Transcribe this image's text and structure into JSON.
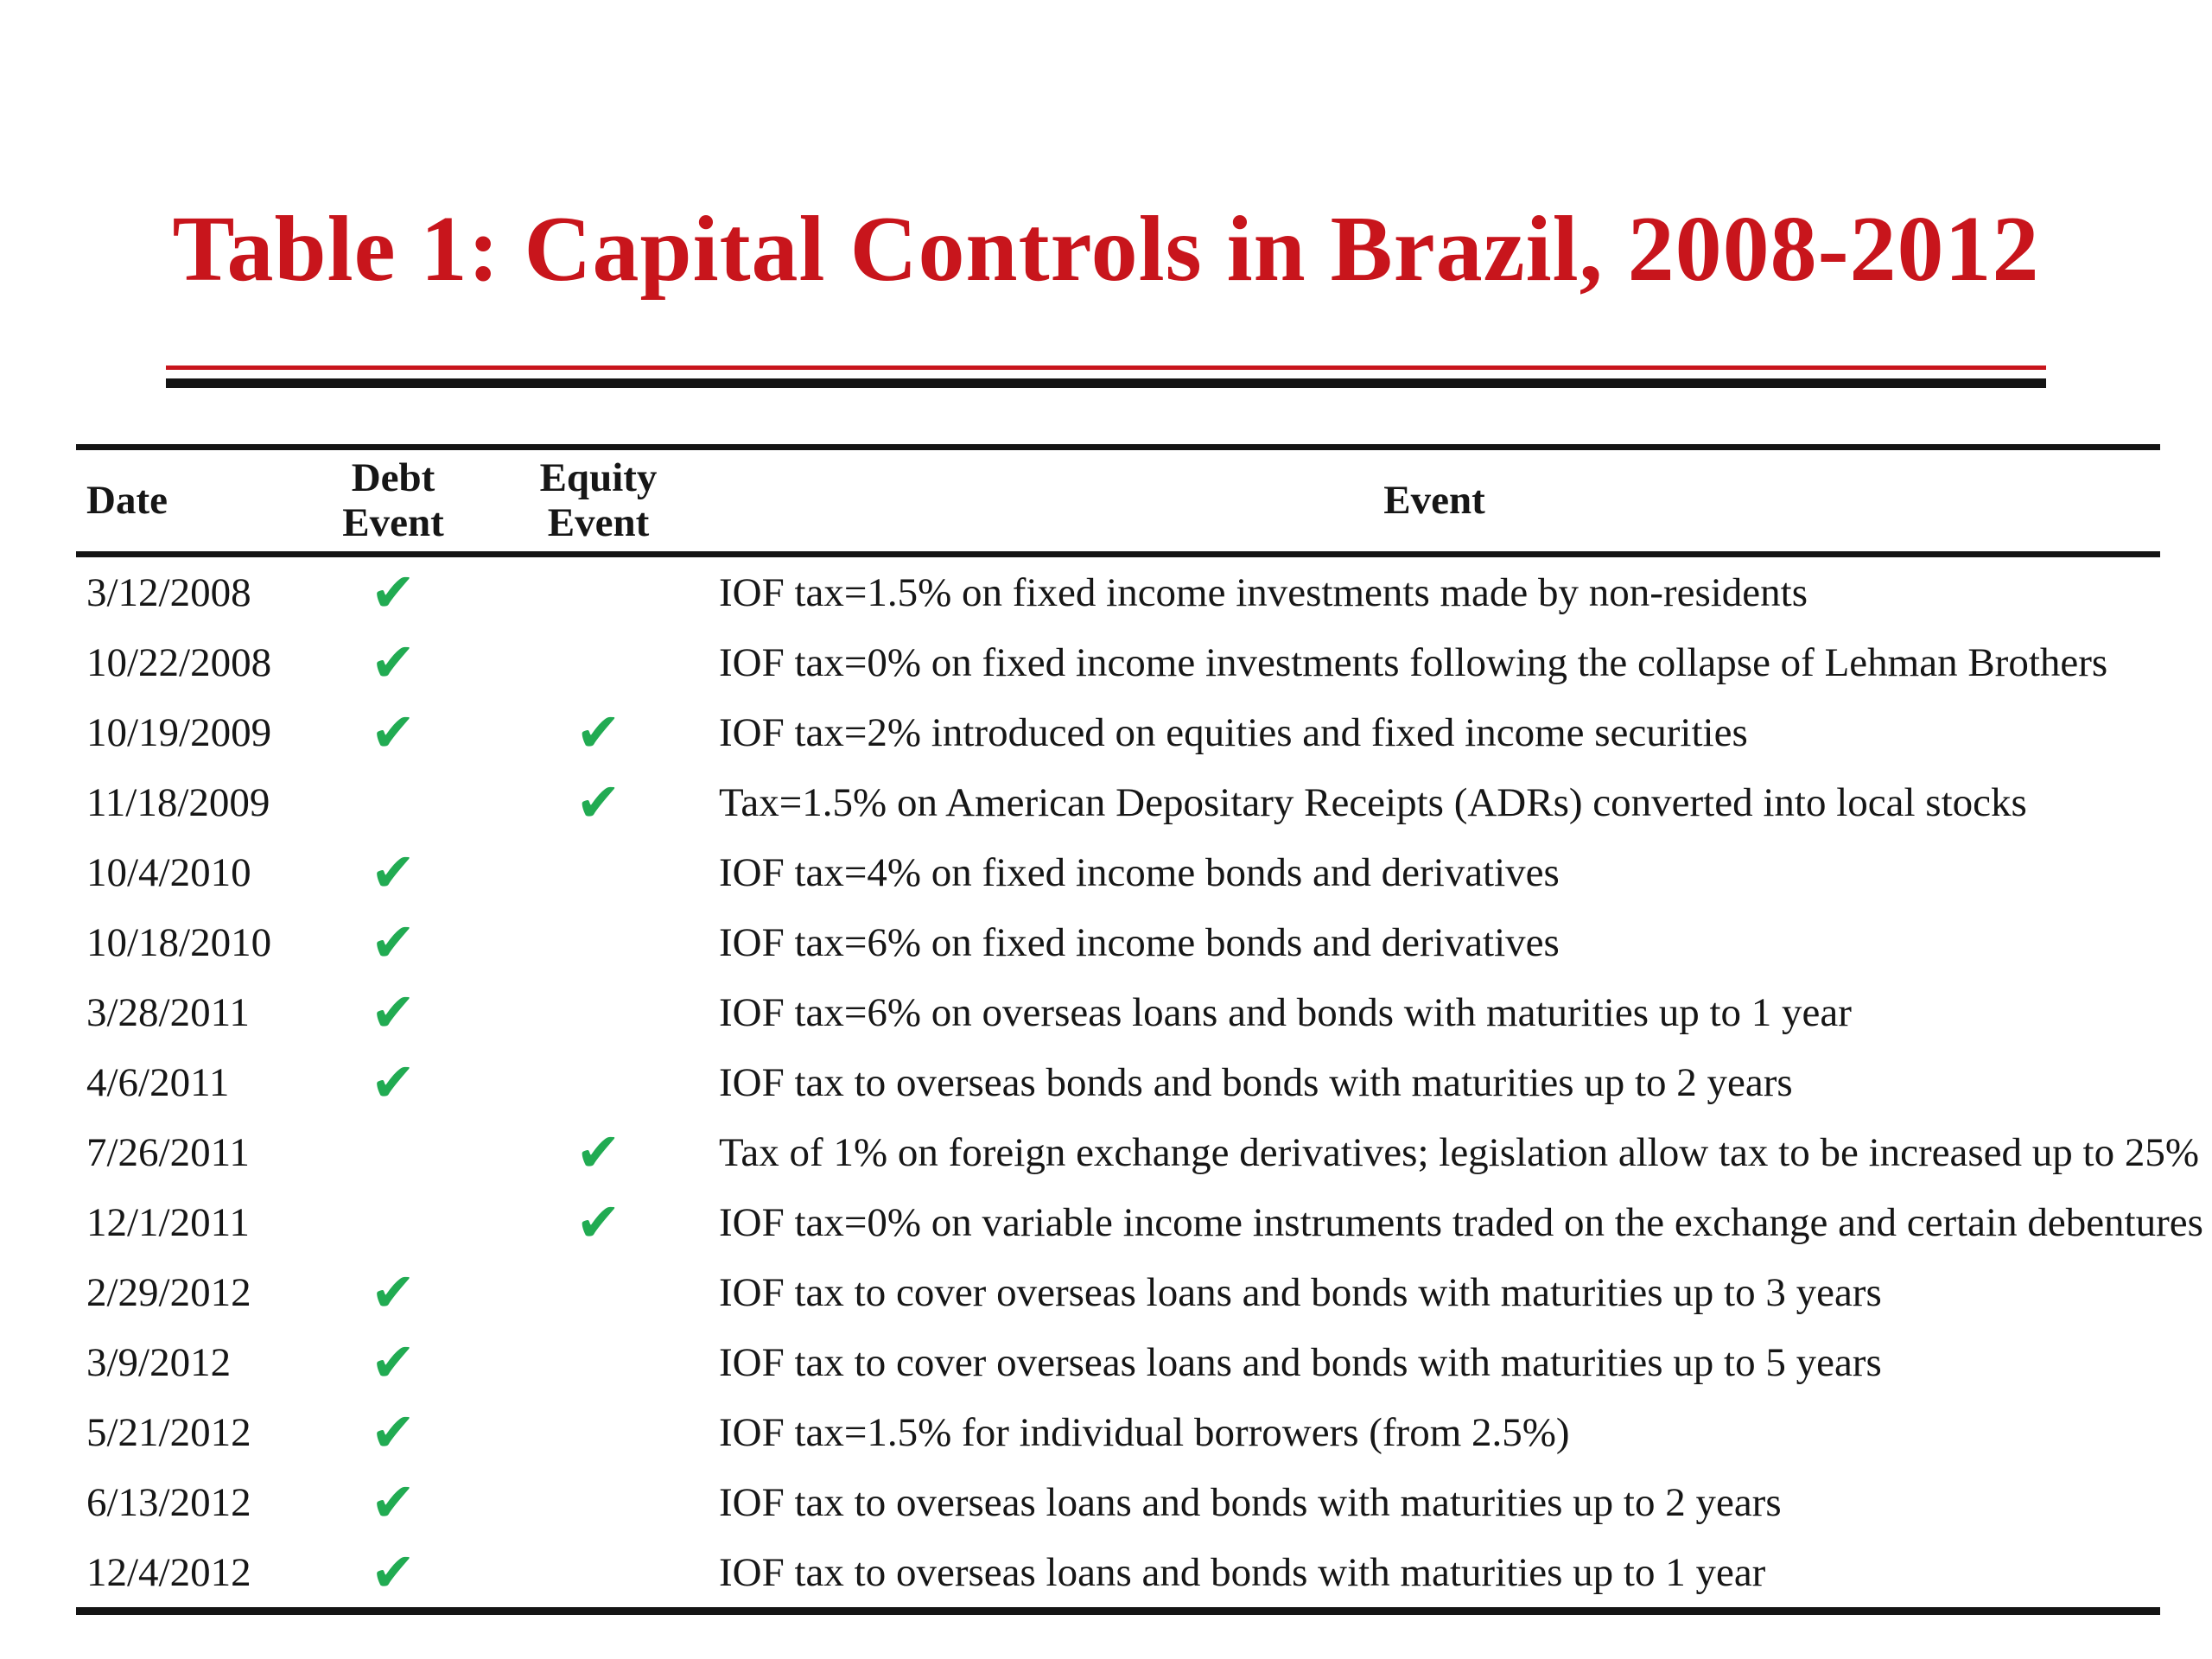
{
  "colors": {
    "background": "#ffffff",
    "text": "#161616",
    "title_red": "#c8151c",
    "rule_black": "#141414",
    "check_green": "#21ab52"
  },
  "title": {
    "text": "Table 1: Capital Controls in Brazil, 2008-2012"
  },
  "table": {
    "headers": {
      "date": "Date",
      "debt": "Debt Event",
      "equity": "Equity Event",
      "event": "Event"
    },
    "check_icon": {
      "name": "check-icon",
      "glyph": "✔"
    },
    "rows": [
      {
        "date": "3/12/2008",
        "debt_event": true,
        "equity_event": false,
        "event": "IOF tax=1.5% on fixed income investments made by non-residents"
      },
      {
        "date": "10/22/2008",
        "debt_event": true,
        "equity_event": false,
        "event": "IOF tax=0% on fixed income investments following the collapse of Lehman Brothers"
      },
      {
        "date": "10/19/2009",
        "debt_event": true,
        "equity_event": true,
        "event": "IOF tax=2% introduced on equities and fixed income securities"
      },
      {
        "date": "11/18/2009",
        "debt_event": false,
        "equity_event": true,
        "event": "Tax=1.5% on American Depositary Receipts (ADRs) converted into local stocks"
      },
      {
        "date": "10/4/2010",
        "debt_event": true,
        "equity_event": false,
        "event": "IOF tax=4% on fixed income bonds and derivatives"
      },
      {
        "date": "10/18/2010",
        "debt_event": true,
        "equity_event": false,
        "event": "IOF tax=6% on fixed income bonds and derivatives"
      },
      {
        "date": "3/28/2011",
        "debt_event": true,
        "equity_event": false,
        "event": "IOF tax=6% on overseas loans and bonds with maturities up to 1 year"
      },
      {
        "date": "4/6/2011",
        "debt_event": true,
        "equity_event": false,
        "event": "IOF tax to overseas bonds and bonds with maturities up to 2 years"
      },
      {
        "date": "7/26/2011",
        "debt_event": false,
        "equity_event": true,
        "event": "Tax of 1% on foreign exchange derivatives; legislation allow tax to be increased up to 25%"
      },
      {
        "date": "12/1/2011",
        "debt_event": false,
        "equity_event": true,
        "event": "IOF tax=0% on variable income instruments traded on the exchange and certain debentures"
      },
      {
        "date": "2/29/2012",
        "debt_event": true,
        "equity_event": false,
        "event": "IOF tax to cover overseas loans and bonds with maturities up to 3 years"
      },
      {
        "date": "3/9/2012",
        "debt_event": true,
        "equity_event": false,
        "event": "IOF tax to cover overseas loans and bonds with maturities up to 5 years"
      },
      {
        "date": "5/21/2012",
        "debt_event": true,
        "equity_event": false,
        "event": "IOF tax=1.5% for individual borrowers (from 2.5%)"
      },
      {
        "date": "6/13/2012",
        "debt_event": true,
        "equity_event": false,
        "event": "IOF tax to overseas loans and bonds with maturities up to 2 years"
      },
      {
        "date": "12/4/2012",
        "debt_event": true,
        "equity_event": false,
        "event": "IOF tax to overseas loans and bonds with maturities up to 1 year"
      }
    ]
  }
}
